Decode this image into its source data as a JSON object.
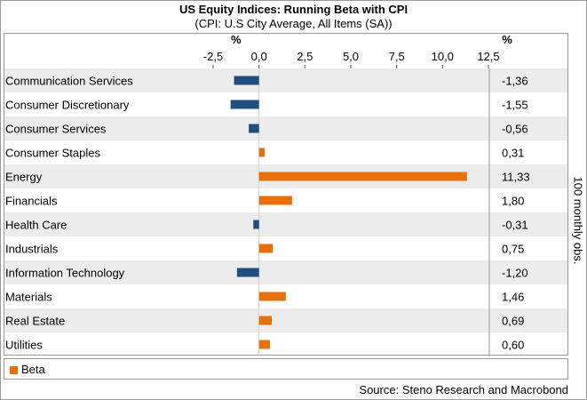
{
  "chart_data": {
    "type": "bar",
    "orientation": "horizontal",
    "title": "US Equity Indices: Running Beta with CPI",
    "subtitle": "(CPI: U.S City Average, All Items (SA))",
    "axis_unit_label": "%",
    "value_column_unit_label": "%",
    "categories": [
      "Communication Services",
      "Consumer Discretionary",
      "Consumer Services",
      "Consumer Staples",
      "Energy",
      "Financials",
      "Health Care",
      "Industrials",
      "Information Technology",
      "Materials",
      "Real Estate",
      "Utilities"
    ],
    "series": [
      {
        "name": "Beta",
        "values": [
          -1.36,
          -1.55,
          -0.56,
          0.31,
          11.33,
          1.8,
          -0.31,
          0.75,
          -1.2,
          1.46,
          0.69,
          0.6
        ]
      }
    ],
    "value_labels": [
      "-1,36",
      "-1,55",
      "-0,56",
      "0,31",
      "11,33",
      "1,80",
      "-0,31",
      "0,75",
      "-1,20",
      "1,46",
      "0,69",
      "0,60"
    ],
    "xlim": [
      -2.5,
      12.5
    ],
    "xticks": [
      -2.5,
      0,
      2.5,
      5,
      7.5,
      10,
      12.5
    ],
    "xtick_labels": [
      "-2,5",
      "0,0",
      "2,5",
      "5,0",
      "7,5",
      "10,0",
      "12,5"
    ],
    "grid": false,
    "legend_position": "bottom-left",
    "positive_color": "#e8700a",
    "negative_color": "#1f4e80",
    "row_band_color": "#ececec",
    "side_note": "100 monthly obs.",
    "source": "Source: Steno Research and Macrobond"
  }
}
